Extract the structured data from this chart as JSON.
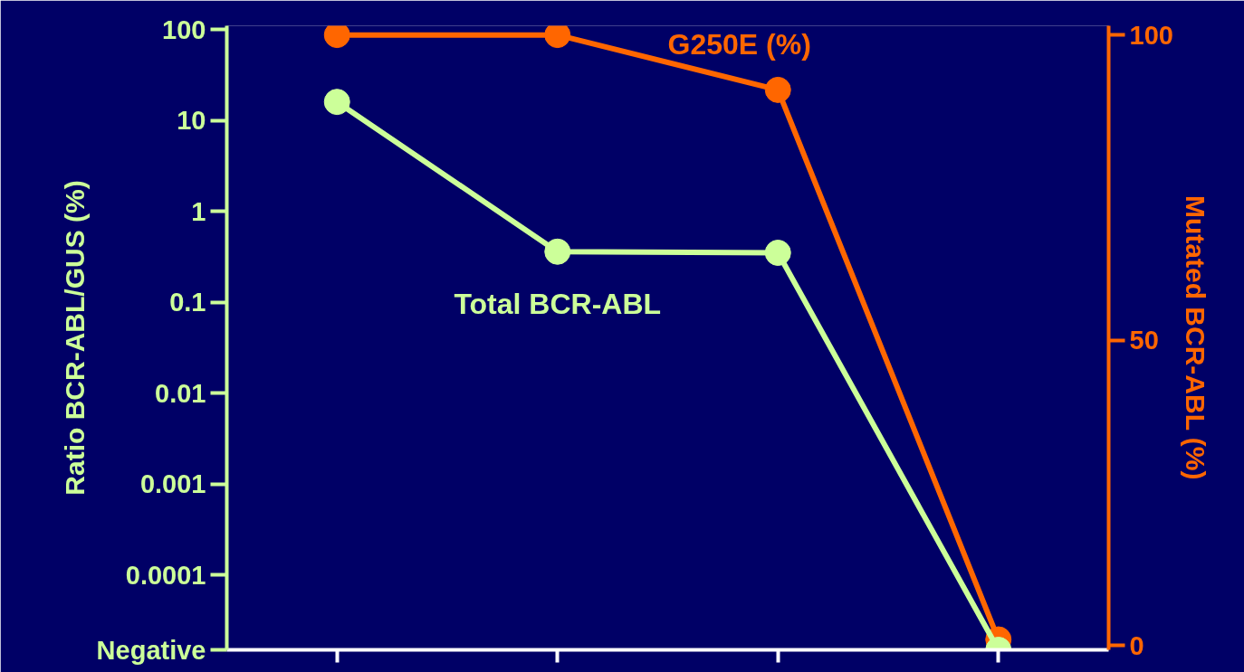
{
  "chart_data": {
    "type": "line",
    "ylabel": "Ratio BCR-ABL/GUS (%)",
    "y2label": "Mutated BCR-ABL (%)",
    "categories": [
      null,
      null,
      null,
      null
    ],
    "series": [
      {
        "name": "Total BCR-ABL",
        "color": "#ccff99",
        "values": [
          16,
          0.36,
          0.35,
          1.5e-05
        ]
      },
      {
        "name": "G250E (%)",
        "color": "#ff6600",
        "values": [
          100,
          100,
          91,
          1
        ],
        "axis": "y2"
      }
    ],
    "log": "y",
    "ylim": [
      1.5e-05,
      110
    ],
    "yticks": [
      {
        "value": 1.5e-05,
        "label": "Negative"
      },
      0.0001,
      0.001,
      0.01,
      0.1,
      1,
      10,
      100
    ],
    "y2lim": [
      -0.7,
      101.5
    ],
    "y2ticks": [
      0,
      50,
      100
    ],
    "marker": "circle",
    "line_style": "solid",
    "grid": false,
    "tick_labels": "y"
  }
}
